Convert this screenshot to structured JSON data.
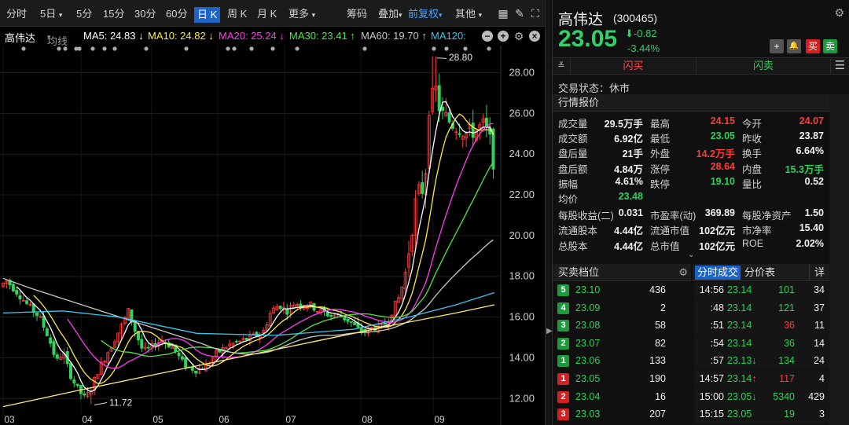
{
  "toolbar": {
    "periods": [
      "分时",
      "5日",
      "5分",
      "15分",
      "30分",
      "60分",
      "日 K",
      "周 K",
      "月 K",
      "更多"
    ],
    "chip": "筹码",
    "overlay": "叠加",
    "adjust": "前复权",
    "other": "其他",
    "icons": [
      "grid-icon",
      "pen-icon",
      "fullscreen-icon"
    ]
  },
  "ma": {
    "name": "高伟达",
    "method": "均线",
    "ma5": "MA5: 24.83 ↓",
    "ma10": "MA10: 24.82 ↓",
    "ma20": "MA20: 25.24 ↓",
    "ma30": "MA30: 23.41 ↑",
    "ma60": "MA60: 19.70 ↑",
    "ma120": "MA120:",
    "colors": {
      "ma5": "#ffffff",
      "ma10": "#ffe94a",
      "ma20": "#ff3cf0",
      "ma30": "#53e64a",
      "ma60": "#c8c8c8",
      "ma120": "#38c7f0",
      "ma250": "#ffe97a"
    }
  },
  "chart_data": {
    "type": "candlestick",
    "y_ticks": [
      "28.00",
      "26.00",
      "24.00",
      "22.00",
      "20.00",
      "18.00",
      "16.00",
      "14.00",
      "12.00"
    ],
    "x_ticks": [
      "03",
      "04",
      "05",
      "06",
      "07",
      "08",
      "09"
    ],
    "ylim": [
      11.2,
      29.1
    ],
    "high_label": "28.80",
    "low_label": "11.72",
    "up_color": "#ff3b3b",
    "down_color": "#36d05d"
  },
  "quote": {
    "name": "高伟达",
    "code": "(300465)",
    "price": "23.05",
    "change": "-0.82",
    "change_pct": "-3.44%",
    "buttons": [
      "+",
      "🔔",
      "买",
      "卖"
    ],
    "flash_buy": "闪买",
    "flash_sell": "闪卖",
    "status": "交易状态：休市",
    "section": "行情报价"
  },
  "stats": [
    [
      [
        "成交量",
        "29.5万手",
        "w"
      ],
      [
        "最高",
        "24.15",
        "r"
      ],
      [
        "今开",
        "24.07",
        "r"
      ]
    ],
    [
      [
        "成交额",
        "6.92亿",
        "w"
      ],
      [
        "最低",
        "23.05",
        "g"
      ],
      [
        "昨收",
        "23.87",
        "w"
      ]
    ],
    [
      [
        "盘后量",
        "21手",
        "w"
      ],
      [
        "外盘",
        "14.2万手",
        "r"
      ],
      [
        "换手",
        "6.64%",
        "w"
      ]
    ],
    [
      [
        "盘后额",
        "4.84万",
        "w"
      ],
      [
        "涨停",
        "28.64",
        "r"
      ],
      [
        "内盘",
        "15.3万手",
        "g"
      ]
    ],
    [
      [
        "振幅",
        "4.61%",
        "w"
      ],
      [
        "跌停",
        "19.10",
        "g"
      ],
      [
        "量比",
        "0.52",
        "w"
      ]
    ],
    [
      [
        "均价",
        "23.48",
        "g"
      ]
    ],
    [
      [
        "每股收益(二)",
        "0.031",
        "w"
      ],
      [
        "市盈率(动)",
        "369.89",
        "w"
      ],
      [
        "每股净资产",
        "1.50",
        "w"
      ]
    ],
    [
      [
        "流通股本",
        "4.44亿",
        "w"
      ],
      [
        "流通市值",
        "102亿元",
        "w"
      ],
      [
        "市净率",
        "15.40",
        "w"
      ]
    ],
    [
      [
        "总股本",
        "4.44亿",
        "w"
      ],
      [
        "总市值",
        "102亿元",
        "w"
      ],
      [
        "ROE",
        "2.02%",
        "w"
      ]
    ]
  ],
  "orderbook": {
    "title": "买卖档位",
    "rows": [
      {
        "level": "5",
        "price": "23.10",
        "vol": "436",
        "side": "sell"
      },
      {
        "level": "4",
        "price": "23.09",
        "vol": "2",
        "side": "sell"
      },
      {
        "level": "3",
        "price": "23.08",
        "vol": "58",
        "side": "sell"
      },
      {
        "level": "2",
        "price": "23.07",
        "vol": "82",
        "side": "sell"
      },
      {
        "level": "1",
        "price": "23.06",
        "vol": "133",
        "side": "sell"
      },
      {
        "level": "1",
        "price": "23.05",
        "vol": "190",
        "side": "buy"
      },
      {
        "level": "2",
        "price": "23.04",
        "vol": "16",
        "side": "buy"
      },
      {
        "level": "3",
        "price": "23.03",
        "vol": "207",
        "side": "buy"
      }
    ]
  },
  "trades": {
    "tab_active": "分时成交",
    "tab2": "分价表",
    "detail": "详",
    "rows": [
      {
        "time": "14:56",
        "price": "23.14",
        "vol": "101",
        "vcolor": "g",
        "n": "34",
        "arrow": ""
      },
      {
        "time": ":48",
        "price": "23.14",
        "vol": "121",
        "vcolor": "g",
        "n": "37",
        "arrow": ""
      },
      {
        "time": ":51",
        "price": "23.14",
        "vol": "36",
        "vcolor": "r",
        "n": "11",
        "arrow": ""
      },
      {
        "time": ":54",
        "price": "23.14",
        "vol": "36",
        "vcolor": "g",
        "n": "14",
        "arrow": ""
      },
      {
        "time": ":57",
        "price": "23.13",
        "vol": "134",
        "vcolor": "g",
        "n": "24",
        "arrow": "↓"
      },
      {
        "time": "14:57",
        "price": "23.14",
        "vol": "117",
        "vcolor": "r",
        "n": "4",
        "arrow": "↑"
      },
      {
        "time": "15:00",
        "price": "23.05",
        "vol": "5340",
        "vcolor": "g",
        "n": "429",
        "arrow": "↓"
      },
      {
        "time": "15:15",
        "price": "23.05",
        "vol": "19",
        "vcolor": "g",
        "n": "3",
        "arrow": ""
      }
    ]
  }
}
